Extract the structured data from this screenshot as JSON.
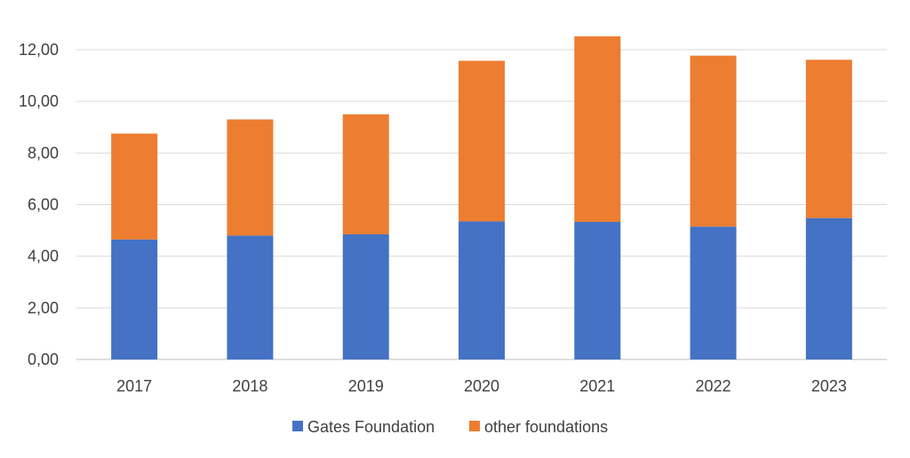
{
  "chart_data": {
    "type": "bar",
    "stacked": true,
    "categories": [
      "2017",
      "2018",
      "2019",
      "2020",
      "2021",
      "2022",
      "2023"
    ],
    "series": [
      {
        "name": "Gates Foundation",
        "color": "#4472C4",
        "values": [
          4.65,
          4.8,
          4.85,
          5.35,
          5.33,
          5.15,
          5.48
        ]
      },
      {
        "name": "other foundations",
        "color": "#ED7D31",
        "values": [
          4.1,
          4.5,
          4.65,
          6.22,
          7.19,
          6.62,
          6.13
        ]
      }
    ],
    "ylim": [
      0,
      12
    ],
    "y_ticks": [
      "0,00",
      "2,00",
      "4,00",
      "6,00",
      "8,00",
      "10,00",
      "12,00"
    ],
    "y_tick_values": [
      0,
      2,
      4,
      6,
      8,
      10,
      12
    ],
    "grid": true,
    "gridline_color": "#D9D9D9",
    "legend_position": "bottom"
  }
}
